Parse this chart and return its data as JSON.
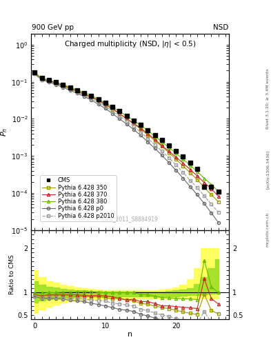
{
  "watermark": "CMS_2011_S8884919",
  "n_values": [
    0,
    1,
    2,
    3,
    4,
    5,
    6,
    7,
    8,
    9,
    10,
    11,
    12,
    13,
    14,
    15,
    16,
    17,
    18,
    19,
    20,
    21,
    22,
    23,
    24,
    25,
    26
  ],
  "cms_data": [
    0.178,
    0.128,
    0.112,
    0.097,
    0.083,
    0.071,
    0.06,
    0.05,
    0.042,
    0.034,
    0.027,
    0.021,
    0.016,
    0.012,
    0.009,
    0.007,
    0.005,
    0.0037,
    0.0027,
    0.0019,
    0.00135,
    0.00095,
    0.00065,
    0.00045,
    0.000145,
    0.00015,
    0.00011
  ],
  "p350_data": [
    0.168,
    0.118,
    0.105,
    0.091,
    0.078,
    0.066,
    0.055,
    0.046,
    0.038,
    0.031,
    0.024,
    0.018,
    0.014,
    0.01,
    0.0074,
    0.0053,
    0.0037,
    0.0026,
    0.0018,
    0.00122,
    0.00082,
    0.00054,
    0.00035,
    0.00023,
    0.00014,
    9e-05,
    5.8e-05
  ],
  "p370_data": [
    0.17,
    0.12,
    0.107,
    0.093,
    0.08,
    0.068,
    0.057,
    0.047,
    0.039,
    0.032,
    0.025,
    0.019,
    0.014,
    0.01,
    0.0077,
    0.0056,
    0.004,
    0.0028,
    0.0019,
    0.00134,
    0.00093,
    0.00064,
    0.00043,
    0.00029,
    0.00019,
    0.00013,
    8.2e-05
  ],
  "p380_data": [
    0.176,
    0.126,
    0.112,
    0.097,
    0.084,
    0.072,
    0.061,
    0.051,
    0.043,
    0.034,
    0.027,
    0.021,
    0.016,
    0.012,
    0.009,
    0.0067,
    0.0048,
    0.0034,
    0.0024,
    0.00168,
    0.00118,
    0.00082,
    0.00056,
    0.00038,
    0.00025,
    0.00017,
    0.00011
  ],
  "pp0_data": [
    0.162,
    0.112,
    0.098,
    0.084,
    0.071,
    0.059,
    0.049,
    0.04,
    0.032,
    0.025,
    0.019,
    0.014,
    0.01,
    0.0073,
    0.0052,
    0.0036,
    0.0024,
    0.0016,
    0.00104,
    0.00066,
    0.00041,
    0.00025,
    0.00015,
    9e-05,
    5.2e-05,
    2.9e-05,
    1.6e-05
  ],
  "p2010_data": [
    0.164,
    0.114,
    0.101,
    0.087,
    0.074,
    0.062,
    0.052,
    0.043,
    0.035,
    0.028,
    0.022,
    0.016,
    0.012,
    0.0087,
    0.0063,
    0.0044,
    0.003,
    0.002,
    0.00136,
    0.00089,
    0.00057,
    0.00036,
    0.00022,
    0.00014,
    8.4e-05,
    5e-05,
    3e-05
  ],
  "band_yellow_n": [
    0,
    1,
    2,
    3,
    4,
    5,
    6,
    7,
    8,
    9,
    10,
    11,
    12,
    13,
    14,
    15,
    16,
    17,
    18,
    19,
    20,
    21,
    22,
    23,
    24,
    25,
    26
  ],
  "band_yellow_upper": [
    1.5,
    1.35,
    1.25,
    1.22,
    1.18,
    1.15,
    1.12,
    1.1,
    1.08,
    1.07,
    1.06,
    1.06,
    1.05,
    1.05,
    1.05,
    1.05,
    1.05,
    1.06,
    1.07,
    1.09,
    1.12,
    1.18,
    1.3,
    1.55,
    2.0,
    2.0,
    2.0
  ],
  "band_yellow_lower": [
    0.55,
    0.62,
    0.68,
    0.73,
    0.77,
    0.8,
    0.82,
    0.84,
    0.85,
    0.86,
    0.87,
    0.87,
    0.87,
    0.87,
    0.87,
    0.87,
    0.87,
    0.87,
    0.87,
    0.87,
    0.87,
    0.87,
    0.87,
    0.87,
    0.87,
    0.87,
    0.87
  ],
  "band_green_n": [
    0,
    1,
    2,
    3,
    4,
    5,
    6,
    7,
    8,
    9,
    10,
    11,
    12,
    13,
    14,
    15,
    16,
    17,
    18,
    19,
    20,
    21,
    22,
    23,
    24,
    25,
    26
  ],
  "band_green_upper": [
    1.25,
    1.18,
    1.13,
    1.11,
    1.09,
    1.07,
    1.06,
    1.05,
    1.04,
    1.04,
    1.03,
    1.03,
    1.03,
    1.03,
    1.02,
    1.02,
    1.02,
    1.02,
    1.03,
    1.04,
    1.05,
    1.07,
    1.1,
    1.2,
    1.35,
    1.55,
    1.75
  ],
  "band_green_lower": [
    0.78,
    0.82,
    0.85,
    0.87,
    0.88,
    0.89,
    0.9,
    0.91,
    0.91,
    0.92,
    0.92,
    0.92,
    0.92,
    0.92,
    0.92,
    0.92,
    0.92,
    0.92,
    0.92,
    0.92,
    0.92,
    0.93,
    0.94,
    0.95,
    0.96,
    0.97,
    0.98
  ],
  "color_cms": "#000000",
  "color_350": "#999900",
  "color_370": "#cc2222",
  "color_380": "#66bb00",
  "color_p0": "#666666",
  "color_p2010": "#999999",
  "color_yellow_band": "#ffff44",
  "color_green_band": "#99dd22"
}
